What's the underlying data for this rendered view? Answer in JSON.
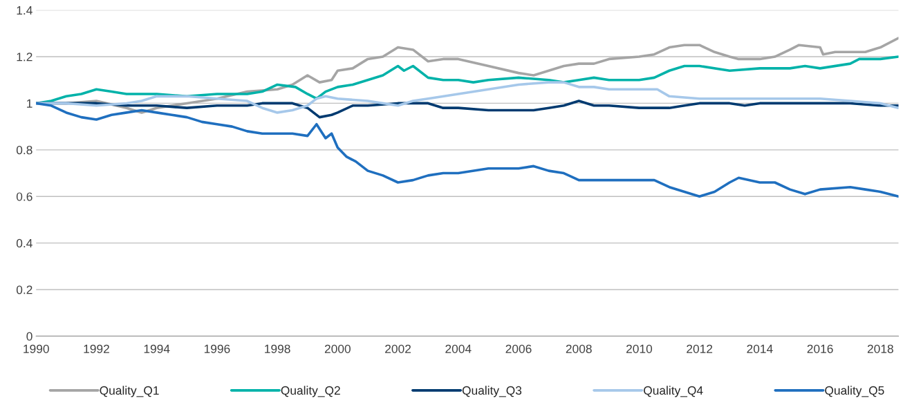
{
  "chart_data": {
    "type": "line",
    "xlim": [
      1990,
      2018.6
    ],
    "xticks": [
      1990,
      1992,
      1994,
      1996,
      1998,
      2000,
      2002,
      2004,
      2006,
      2008,
      2010,
      2012,
      2014,
      2016,
      2018
    ],
    "ylim": [
      0,
      1.4
    ],
    "yticks": [
      0,
      0.2,
      0.4,
      0.6,
      0.8,
      1,
      1.2,
      1.4
    ],
    "grid": "y",
    "legend": "bottom",
    "line_style": "solid",
    "marker": "none",
    "series": [
      {
        "name": "Quality_Q1",
        "color": "#a5a5a5",
        "x": [
          1990,
          1991,
          1992,
          1993,
          1993.5,
          1994,
          1995,
          1996,
          1997,
          1998,
          1998.5,
          1999,
          1999.4,
          1999.8,
          2000,
          2000.5,
          2001,
          2001.5,
          2002,
          2002.5,
          2003,
          2003.5,
          2004,
          2005,
          2006,
          2006.5,
          2007,
          2007.5,
          2008,
          2008.5,
          2009,
          2010,
          2010.5,
          2011,
          2011.5,
          2012,
          2012.5,
          2013,
          2013.3,
          2014,
          2014.5,
          2015,
          2015.3,
          2016,
          2016.1,
          2016.5,
          2017,
          2017.5,
          2018,
          2018.6
        ],
        "values": [
          1.0,
          1.0,
          1.01,
          0.98,
          0.96,
          0.98,
          1.0,
          1.02,
          1.05,
          1.06,
          1.08,
          1.12,
          1.09,
          1.1,
          1.14,
          1.15,
          1.19,
          1.2,
          1.24,
          1.23,
          1.18,
          1.19,
          1.19,
          1.16,
          1.13,
          1.12,
          1.14,
          1.16,
          1.17,
          1.17,
          1.19,
          1.2,
          1.21,
          1.24,
          1.25,
          1.25,
          1.22,
          1.2,
          1.19,
          1.19,
          1.2,
          1.23,
          1.25,
          1.24,
          1.21,
          1.22,
          1.22,
          1.22,
          1.24,
          1.28
        ]
      },
      {
        "name": "Quality_Q2",
        "color": "#00b2a9",
        "x": [
          1990,
          1990.5,
          1991,
          1991.5,
          1992,
          1992.5,
          1993,
          1994,
          1995,
          1996,
          1997,
          1997.5,
          1998,
          1998.6,
          1999,
          1999.3,
          1999.6,
          2000,
          2000.5,
          2001,
          2001.5,
          2002,
          2002.2,
          2002.5,
          2003,
          2003.5,
          2004,
          2004.5,
          2005,
          2006,
          2007,
          2007.5,
          2008,
          2008.5,
          2009,
          2010,
          2010.5,
          2011,
          2011.5,
          2012,
          2013,
          2014,
          2014.5,
          2015,
          2015.5,
          2016,
          2017,
          2017.3,
          2017.5,
          2018,
          2018.6
        ],
        "values": [
          1.0,
          1.01,
          1.03,
          1.04,
          1.06,
          1.05,
          1.04,
          1.04,
          1.03,
          1.04,
          1.04,
          1.05,
          1.08,
          1.07,
          1.04,
          1.02,
          1.05,
          1.07,
          1.08,
          1.1,
          1.12,
          1.16,
          1.14,
          1.16,
          1.11,
          1.1,
          1.1,
          1.09,
          1.1,
          1.11,
          1.1,
          1.09,
          1.1,
          1.11,
          1.1,
          1.1,
          1.11,
          1.14,
          1.16,
          1.16,
          1.14,
          1.15,
          1.15,
          1.15,
          1.16,
          1.15,
          1.17,
          1.19,
          1.19,
          1.19,
          1.2
        ]
      },
      {
        "name": "Quality_Q3",
        "color": "#003a70",
        "x": [
          1990,
          1991,
          1992,
          1993,
          1994,
          1995,
          1996,
          1997,
          1997.5,
          1998,
          1998.5,
          1999,
          1999.4,
          1999.8,
          2000,
          2000.5,
          2001,
          2002,
          2002.5,
          2003,
          2003.5,
          2004,
          2005,
          2006,
          2006.5,
          2007,
          2007.5,
          2008,
          2008.5,
          2009,
          2010,
          2011,
          2011.5,
          2012,
          2013,
          2013.5,
          2014,
          2015,
          2016,
          2017,
          2018,
          2018.6
        ],
        "values": [
          1.0,
          1.0,
          1.0,
          0.99,
          0.99,
          0.98,
          0.99,
          0.99,
          1.0,
          1.0,
          1.0,
          0.98,
          0.94,
          0.95,
          0.96,
          0.99,
          0.99,
          1.0,
          1.0,
          1.0,
          0.98,
          0.98,
          0.97,
          0.97,
          0.97,
          0.98,
          0.99,
          1.01,
          0.99,
          0.99,
          0.98,
          0.98,
          0.99,
          1.0,
          1.0,
          0.99,
          1.0,
          1.0,
          1.0,
          1.0,
          0.99,
          0.99
        ]
      },
      {
        "name": "Quality_Q4",
        "color": "#a6c8ea",
        "x": [
          1990,
          1991,
          1992,
          1993,
          1993.5,
          1994,
          1995,
          1996,
          1997,
          1997.5,
          1998,
          1998.5,
          1999,
          1999.3,
          1999.6,
          2000,
          2001,
          2002,
          2002.5,
          2003,
          2004,
          2005,
          2006,
          2007,
          2007.5,
          2008,
          2008.5,
          2009,
          2010,
          2010.6,
          2011,
          2012,
          2013,
          2014,
          2015,
          2016,
          2017,
          2018,
          2018.6
        ],
        "values": [
          1.0,
          1.0,
          0.99,
          1.0,
          1.01,
          1.03,
          1.03,
          1.02,
          1.01,
          0.98,
          0.96,
          0.97,
          0.99,
          1.02,
          1.03,
          1.02,
          1.01,
          0.99,
          1.01,
          1.02,
          1.04,
          1.06,
          1.08,
          1.09,
          1.09,
          1.07,
          1.07,
          1.06,
          1.06,
          1.06,
          1.03,
          1.02,
          1.02,
          1.02,
          1.02,
          1.02,
          1.01,
          1.0,
          0.98
        ]
      },
      {
        "name": "Quality_Q5",
        "color": "#1f6fbf",
        "x": [
          1990,
          1990.5,
          1991,
          1991.5,
          1992,
          1992.5,
          1993,
          1993.5,
          1994,
          1994.5,
          1995,
          1995.5,
          1996,
          1996.5,
          1997,
          1997.5,
          1998,
          1998.5,
          1999,
          1999.3,
          1999.6,
          1999.8,
          2000,
          2000.3,
          2000.6,
          2001,
          2001.5,
          2002,
          2002.5,
          2003,
          2003.5,
          2004,
          2005,
          2006,
          2006.5,
          2007,
          2007.5,
          2008,
          2009,
          2010,
          2010.5,
          2011,
          2011.5,
          2012,
          2012.5,
          2013,
          2013.3,
          2014,
          2014.5,
          2015,
          2015.5,
          2016,
          2017,
          2017.5,
          2018,
          2018.6
        ],
        "values": [
          1.0,
          0.99,
          0.96,
          0.94,
          0.93,
          0.95,
          0.96,
          0.97,
          0.96,
          0.95,
          0.94,
          0.92,
          0.91,
          0.9,
          0.88,
          0.87,
          0.87,
          0.87,
          0.86,
          0.91,
          0.85,
          0.87,
          0.81,
          0.77,
          0.75,
          0.71,
          0.69,
          0.66,
          0.67,
          0.69,
          0.7,
          0.7,
          0.72,
          0.72,
          0.73,
          0.71,
          0.7,
          0.67,
          0.67,
          0.67,
          0.67,
          0.64,
          0.62,
          0.6,
          0.62,
          0.66,
          0.68,
          0.66,
          0.66,
          0.63,
          0.61,
          0.63,
          0.64,
          0.63,
          0.62,
          0.6
        ]
      }
    ]
  }
}
